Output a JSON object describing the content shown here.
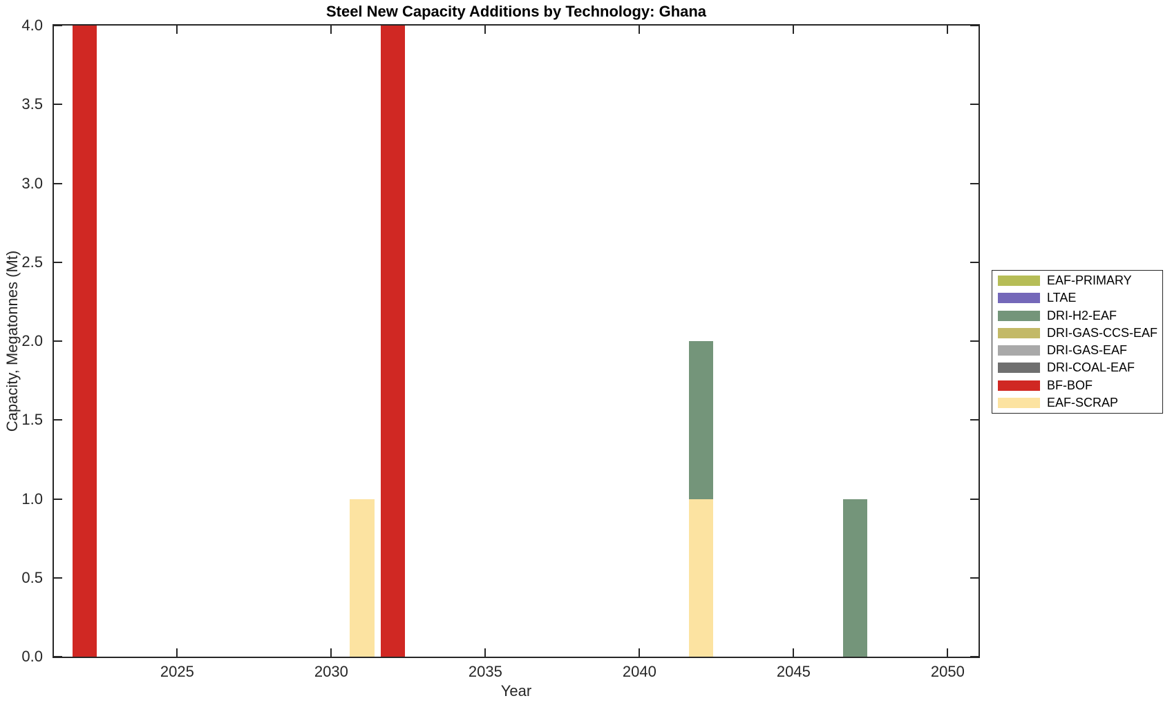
{
  "chart_data": {
    "type": "bar",
    "stacked": true,
    "title": "Steel New Capacity Additions by Technology: Ghana",
    "xlabel": "Year",
    "ylabel": "Capacity, Megatonnes (Mt)",
    "xlim": [
      2021,
      2051
    ],
    "ylim": [
      0,
      4
    ],
    "grid": false,
    "bar_width_years": 0.8,
    "xticks": [
      {
        "value": 2025,
        "label": "2025"
      },
      {
        "value": 2030,
        "label": "2030"
      },
      {
        "value": 2035,
        "label": "2035"
      },
      {
        "value": 2040,
        "label": "2040"
      },
      {
        "value": 2045,
        "label": "2045"
      },
      {
        "value": 2050,
        "label": "2050"
      }
    ],
    "yticks": [
      {
        "value": 0.0,
        "label": "0.0"
      },
      {
        "value": 0.5,
        "label": "0.5"
      },
      {
        "value": 1.0,
        "label": "1.0"
      },
      {
        "value": 1.5,
        "label": "1.5"
      },
      {
        "value": 2.0,
        "label": "2.0"
      },
      {
        "value": 2.5,
        "label": "2.5"
      },
      {
        "value": 3.0,
        "label": "3.0"
      },
      {
        "value": 3.5,
        "label": "3.5"
      },
      {
        "value": 4.0,
        "label": "4.0"
      }
    ],
    "series_colors": {
      "EAF-PRIMARY": "#b6bd57",
      "LTAE": "#7468b9",
      "DRI-H2-EAF": "#74957a",
      "DRI-GAS-CCS-EAF": "#c3b967",
      "DRI-GAS-EAF": "#a9a9a9",
      "DRI-COAL-EAF": "#6f6f6f",
      "BF-BOF": "#d02823",
      "EAF-SCRAP": "#fce3a1"
    },
    "legend": {
      "position": "right-outside",
      "entries": [
        "EAF-PRIMARY",
        "LTAE",
        "DRI-H2-EAF",
        "DRI-GAS-CCS-EAF",
        "DRI-GAS-EAF",
        "DRI-COAL-EAF",
        "BF-BOF",
        "EAF-SCRAP"
      ]
    },
    "bars": [
      {
        "year": 2022,
        "segments": [
          {
            "series": "BF-BOF",
            "value": 4.0
          }
        ]
      },
      {
        "year": 2031,
        "segments": [
          {
            "series": "EAF-SCRAP",
            "value": 1.0
          }
        ]
      },
      {
        "year": 2032,
        "segments": [
          {
            "series": "BF-BOF",
            "value": 4.0
          }
        ]
      },
      {
        "year": 2042,
        "segments": [
          {
            "series": "EAF-SCRAP",
            "value": 1.0
          },
          {
            "series": "DRI-H2-EAF",
            "value": 1.0
          }
        ]
      },
      {
        "year": 2047,
        "segments": [
          {
            "series": "DRI-H2-EAF",
            "value": 1.0
          }
        ]
      }
    ]
  }
}
